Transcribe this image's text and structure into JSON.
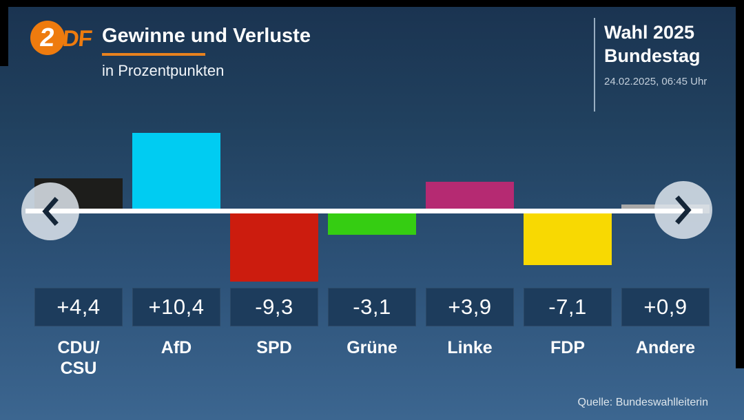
{
  "header": {
    "logo": {
      "circle_char": "2",
      "suffix": "DF"
    },
    "title": "Gewinne und Verluste",
    "subtitle": "in Prozentpunkten",
    "election": {
      "title_line1": "Wahl 2025",
      "title_line2": "Bundestag",
      "timestamp": "24.02.2025, 06:45 Uhr"
    }
  },
  "chart_data": {
    "type": "bar",
    "title": "Gewinne und Verluste",
    "subtitle": "in Prozentpunkten",
    "unit": "Prozentpunkte",
    "baseline": 0,
    "ylim": [
      -10.5,
      11
    ],
    "grid": false,
    "categories": [
      "CDU/CSU",
      "AfD",
      "SPD",
      "Grüne",
      "Linke",
      "FDP",
      "Andere"
    ],
    "values": [
      4.4,
      10.4,
      -9.3,
      -3.1,
      3.9,
      -7.1,
      0.9
    ],
    "parties": [
      {
        "name": "CDU/CSU",
        "display_label": "CDU/\nCSU",
        "value": 4.4,
        "value_label": "+4,4",
        "color": "#1d1d1b"
      },
      {
        "name": "AfD",
        "display_label": "AfD",
        "value": 10.4,
        "value_label": "+10,4",
        "color": "#00ccf2"
      },
      {
        "name": "SPD",
        "display_label": "SPD",
        "value": -9.3,
        "value_label": "-9,3",
        "color": "#cc1c0e"
      },
      {
        "name": "Grüne",
        "display_label": "Grüne",
        "value": -3.1,
        "value_label": "-3,1",
        "color": "#35cd12"
      },
      {
        "name": "Linke",
        "display_label": "Linke",
        "value": 3.9,
        "value_label": "+3,9",
        "color": "#b52a72"
      },
      {
        "name": "FDP",
        "display_label": "FDP",
        "value": -7.1,
        "value_label": "-7,1",
        "color": "#f8d902"
      },
      {
        "name": "Andere",
        "display_label": "Andere",
        "value": 0.9,
        "value_label": "+0,9",
        "color": "#a8a8a8"
      }
    ]
  },
  "nav": {
    "prev_icon": "chevron-left",
    "next_icon": "chevron-right"
  },
  "footer": {
    "source": "Quelle: Bundeswahlleiterin"
  },
  "colors": {
    "background_top": "#1a3350",
    "background_bottom": "#3c6690",
    "accent_orange": "#e8821e",
    "logo_orange": "#ee7b0e",
    "baseline_white": "#ffffff",
    "value_box_bg": "#1d3c5c",
    "arrow_disc": "#dee5ec",
    "arrow_chevron": "#152638",
    "frame_black": "#000000"
  }
}
